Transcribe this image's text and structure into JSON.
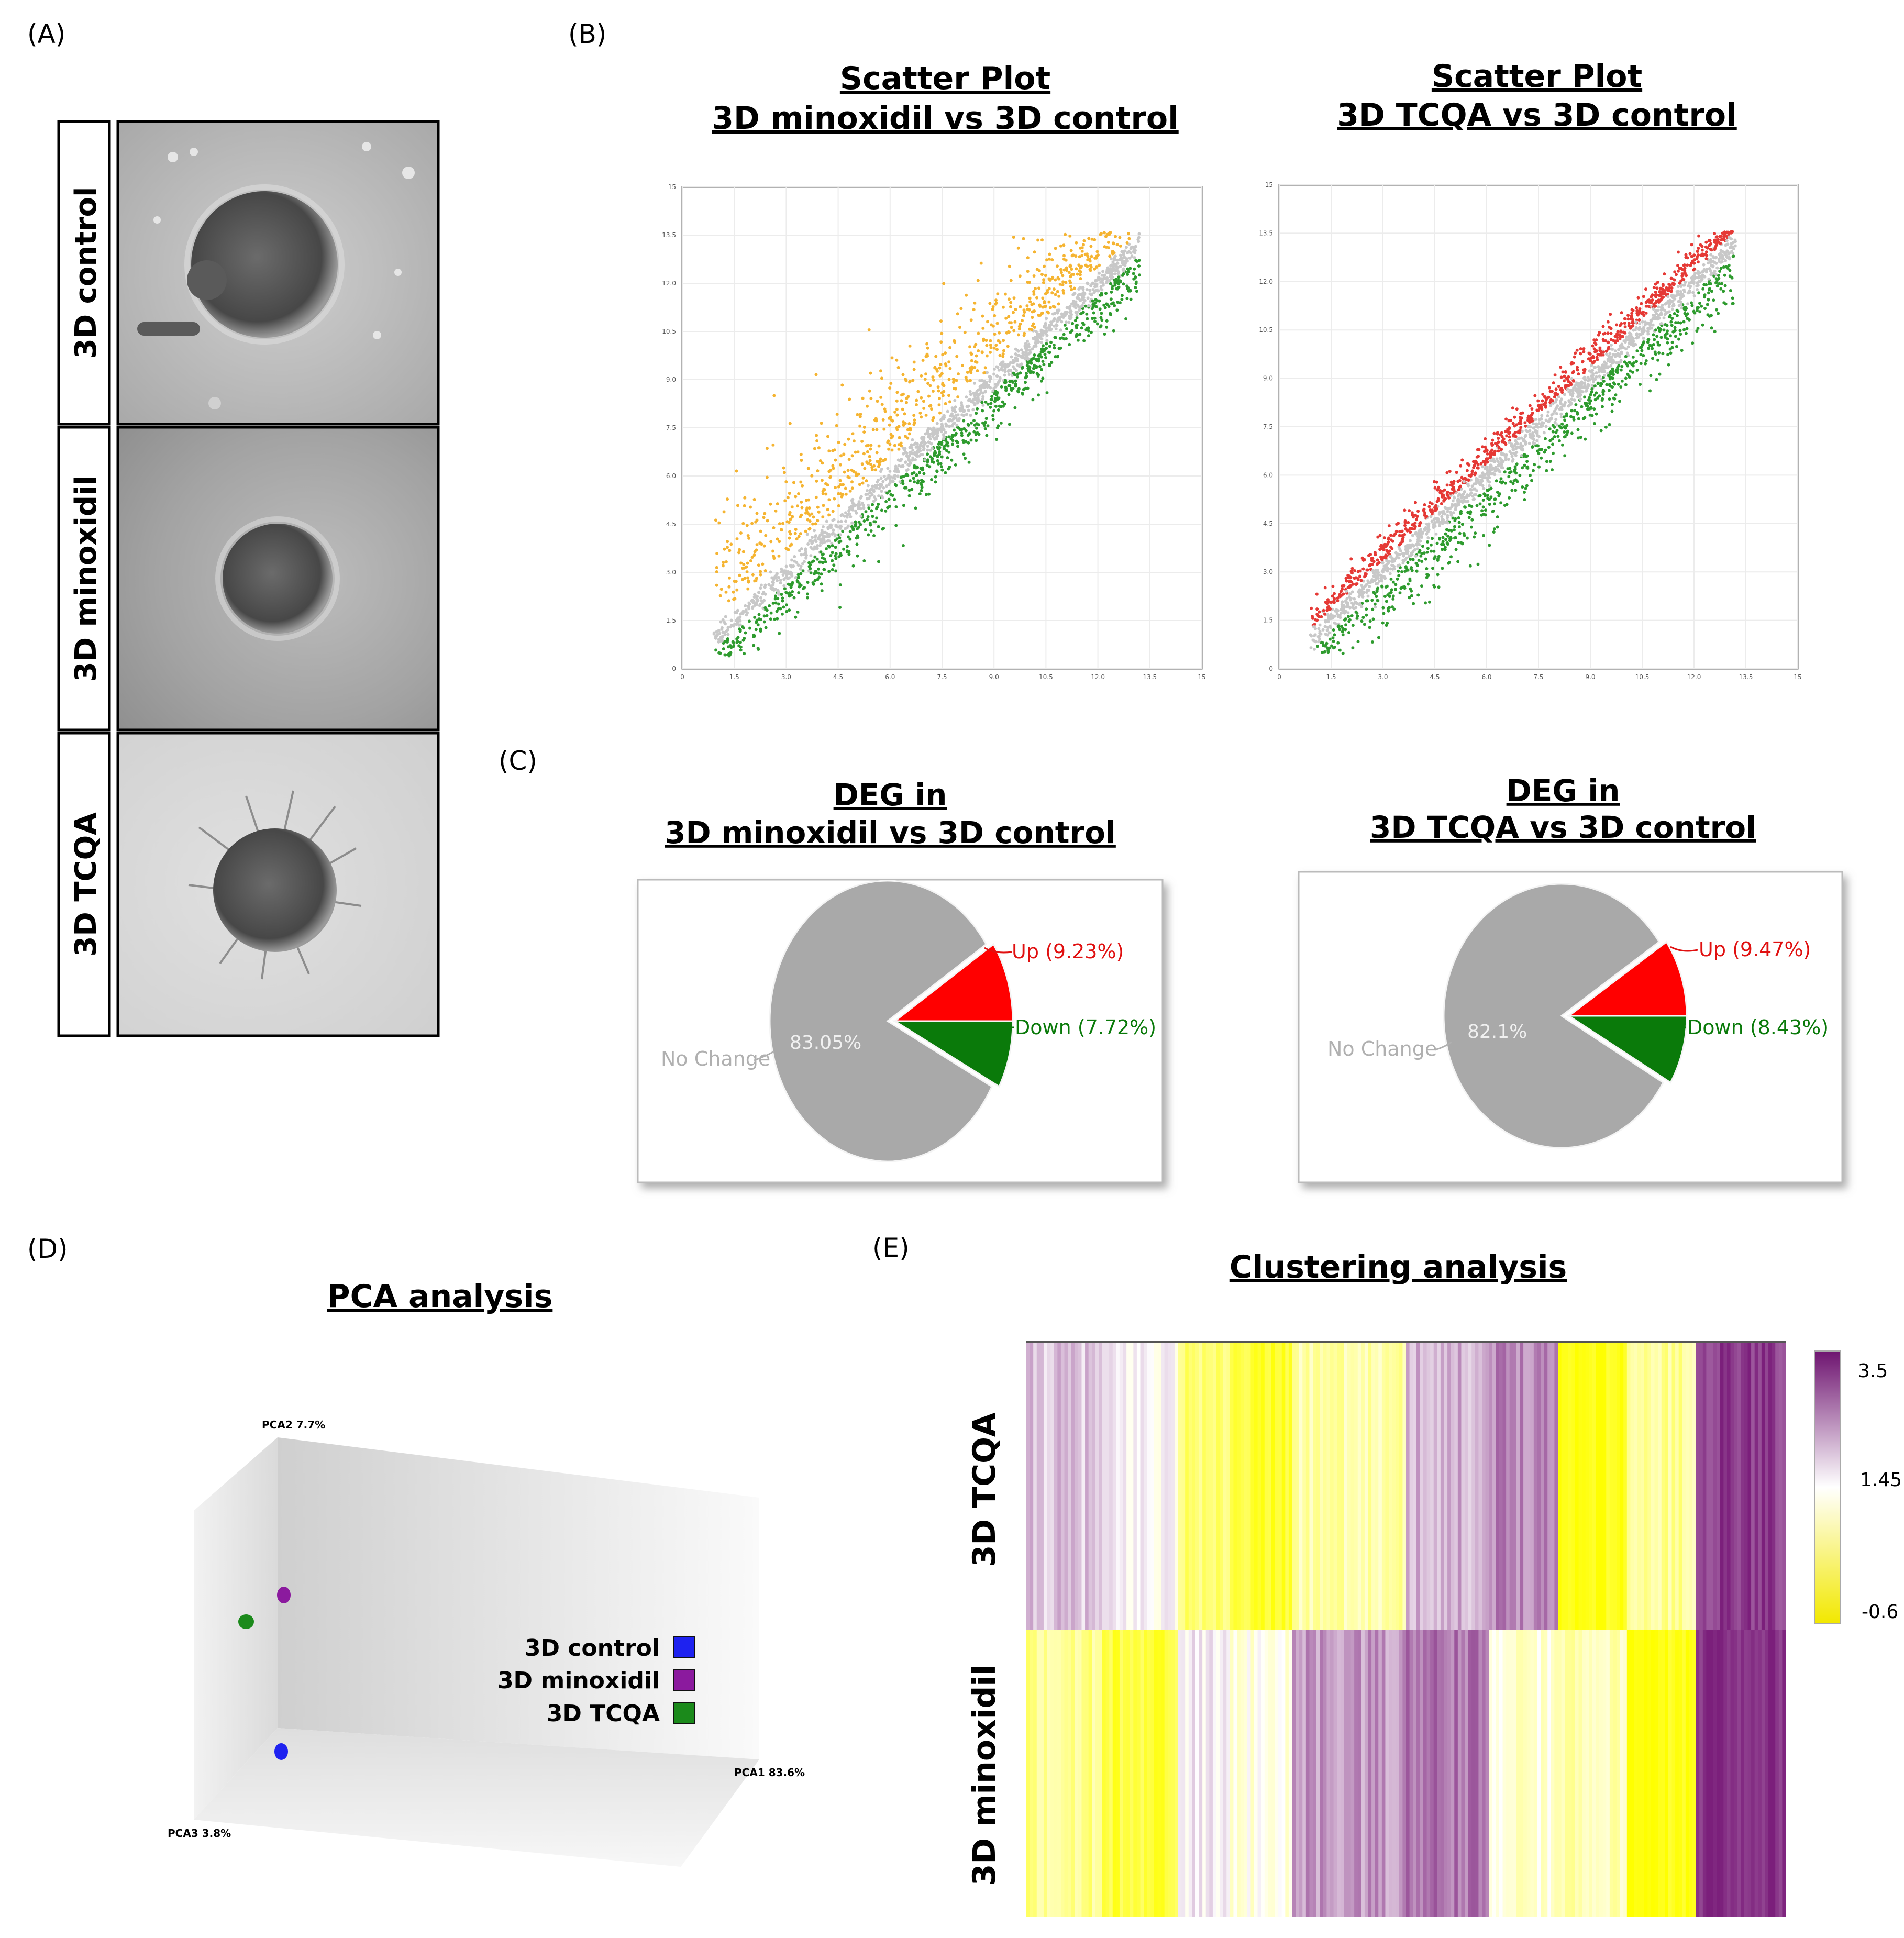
{
  "panels": {
    "a": {
      "label": "(A)",
      "rows": [
        "3D control",
        "3D minoxidil",
        "3D TCQA"
      ]
    },
    "b": {
      "label": "(B)",
      "plots": [
        {
          "title_line1": "Scatter Plot",
          "title_line2": "3D minoxidil vs 3D control"
        },
        {
          "title_line1": "Scatter Plot",
          "title_line2": "3D TCQA vs 3D control"
        }
      ]
    },
    "c": {
      "label": "(C)",
      "pies": [
        {
          "title_line1": "DEG in",
          "title_line2": "3D minoxidil vs 3D control"
        },
        {
          "title_line1": "DEG in",
          "title_line2": "3D TCQA vs 3D control"
        }
      ]
    },
    "d": {
      "label": "(D)",
      "title": "PCA analysis",
      "axes": {
        "pca1": "PCA1 83.6%",
        "pca2": "PCA2 7.7%",
        "pca3": "PCA3 3.8%"
      }
    },
    "e": {
      "label": "(E)",
      "title": "Clustering analysis",
      "rows": [
        "3D TCQA",
        "3D minoxidil"
      ],
      "colorbar": {
        "max": "3.5",
        "mid": "1.45",
        "min": "-0.6"
      }
    }
  },
  "colors": {
    "upregulated_b1": "#F5B431",
    "upregulated_b2": "#E53935",
    "downregulated": "#2E9B2E",
    "nochange": "#C8C8C8",
    "pie_up": "#FF0000",
    "pie_down": "#0A7A0A",
    "pie_none": "#A9A9A9",
    "heat_high": "#7B1F7B",
    "heat_mid": "#FFFFFF",
    "heat_low": "#FFFF00"
  },
  "chart_data": [
    {
      "type": "scatter",
      "title": "Scatter Plot 3D minoxidil vs 3D control",
      "xlabel": "",
      "ylabel": "",
      "xlim": [
        0,
        15
      ],
      "ylim": [
        0,
        15
      ],
      "x_ticks": [
        "0",
        "1.5",
        "3.0",
        "4.5",
        "6.0",
        "7.5",
        "9.0",
        "10.5",
        "12.0",
        "13.5",
        "15"
      ],
      "y_ticks": [
        "0",
        "1.5",
        "3.0",
        "4.5",
        "6.0",
        "7.5",
        "9.0",
        "10.5",
        "12.0",
        "13.5",
        "15"
      ],
      "series": [
        {
          "name": "Up",
          "color": "#F5B431"
        },
        {
          "name": "No Change",
          "color": "#C8C8C8"
        },
        {
          "name": "Down",
          "color": "#2E9B2E"
        }
      ]
    },
    {
      "type": "scatter",
      "title": "Scatter Plot 3D TCQA vs 3D control",
      "xlabel": "",
      "ylabel": "",
      "xlim": [
        0,
        15
      ],
      "ylim": [
        0,
        15
      ],
      "x_ticks": [
        "0",
        "1.5",
        "3.0",
        "4.5",
        "6.0",
        "7.5",
        "9.0",
        "10.5",
        "12.0",
        "13.5",
        "15"
      ],
      "y_ticks": [
        "0",
        "1.5",
        "3.0",
        "4.5",
        "6.0",
        "7.5",
        "9.0",
        "10.5",
        "12.0",
        "13.5",
        "15"
      ],
      "series": [
        {
          "name": "Up",
          "color": "#E53935"
        },
        {
          "name": "No Change",
          "color": "#C8C8C8"
        },
        {
          "name": "Down",
          "color": "#2E9B2E"
        }
      ]
    },
    {
      "type": "pie",
      "title": "DEG in 3D minoxidil vs 3D control",
      "slices": [
        {
          "label": "Up (9.23%)",
          "value": 9.23,
          "color": "#FF0000"
        },
        {
          "label": "Down (7.72%)",
          "value": 7.72,
          "color": "#0A7A0A"
        },
        {
          "label": "No Change",
          "value": 83.05,
          "inside_label": "83.05%",
          "color": "#A9A9A9"
        }
      ]
    },
    {
      "type": "pie",
      "title": "DEG in 3D TCQA vs 3D control",
      "slices": [
        {
          "label": "Up (9.47%)",
          "value": 9.47,
          "color": "#FF0000"
        },
        {
          "label": "Down (8.43%)",
          "value": 8.43,
          "color": "#0A7A0A"
        },
        {
          "label": "No Change",
          "value": 82.1,
          "inside_label": "82.1%",
          "color": "#A9A9A9"
        }
      ]
    },
    {
      "type": "scatter",
      "title": "PCA analysis",
      "axes": [
        "PCA1 83.6%",
        "PCA2 7.7%",
        "PCA3 3.8%"
      ],
      "legend": [
        {
          "label": "3D control",
          "color": "#1E22F0"
        },
        {
          "label": "3D minoxidil",
          "color": "#8B1A9E"
        },
        {
          "label": "3D TCQA",
          "color": "#1B8A1B"
        }
      ]
    },
    {
      "type": "heatmap",
      "title": "Clustering analysis",
      "rows": [
        "3D TCQA",
        "3D minoxidil"
      ],
      "colorbar_range": [
        -0.6,
        3.5
      ],
      "colorbar_ticks": [
        "3.5",
        "1.45",
        "-0.6"
      ]
    }
  ]
}
